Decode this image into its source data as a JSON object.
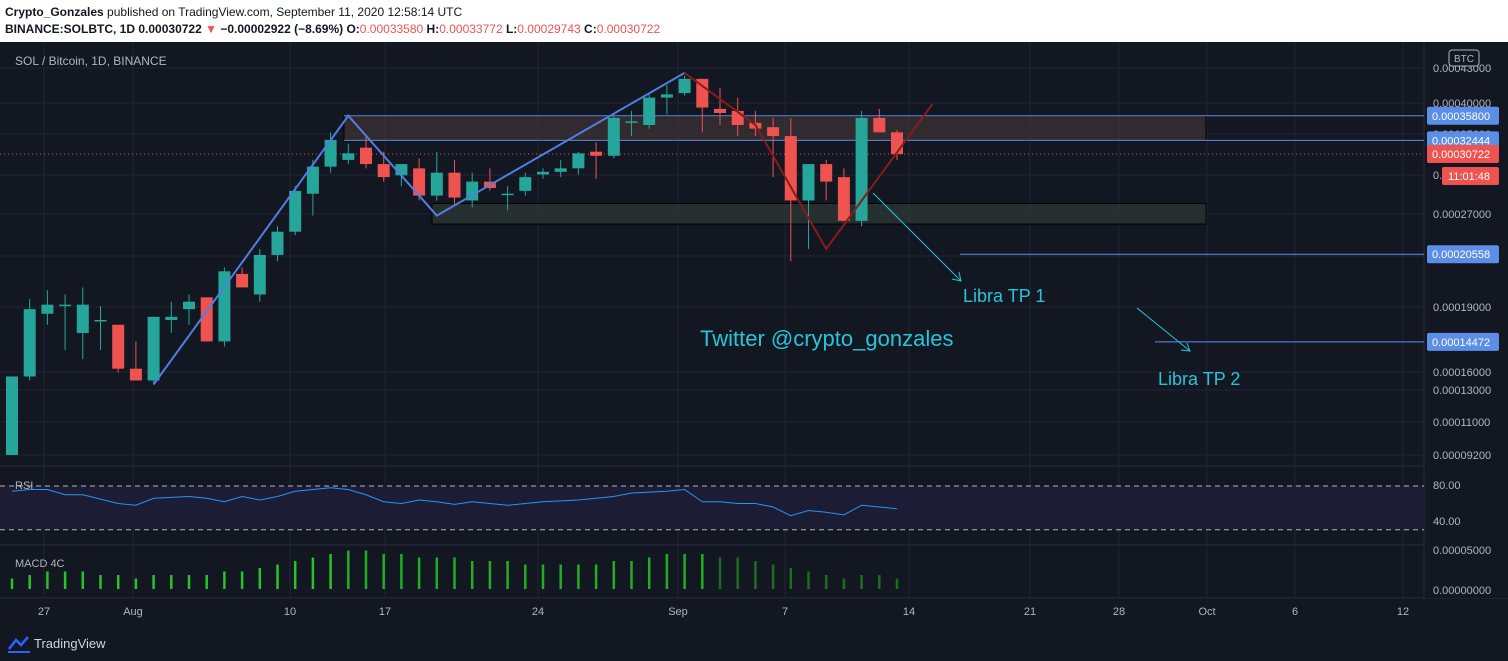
{
  "header": {
    "author": "Crypto_Gonzales",
    "published": "published on TradingView.com, September 11, 2020 12:58:14 UTC",
    "symbol": "BINANCE:SOLBTC, 1D",
    "last": "0.00030722",
    "change": "−0.00002922 (−8.69%)",
    "o_label": "O:",
    "o": "0.00033580",
    "h_label": "H:",
    "h": "0.00033772",
    "l_label": "L:",
    "l": "0.00029743",
    "c_label": "C:",
    "c": "0.00030722"
  },
  "chart_data": {
    "type": "candlestick",
    "title": "SOL / Bitcoin, 1D, BINANCE",
    "currency": "BTC",
    "y_ticks": [
      "0.00043000",
      "0.00040000",
      "0.00035000",
      "0.00031000",
      "0.00027000",
      "0.00023000",
      "0.00019000",
      "0.00016000",
      "0.00013000",
      "0.00011000",
      "0.00009200"
    ],
    "x_ticks": [
      "27",
      "Aug",
      "10",
      "17",
      "24",
      "Sep",
      "7",
      "14",
      "21",
      "28",
      "Oct",
      "6",
      "12"
    ],
    "candles": [
      {
        "o": 9.2e-05,
        "h": 0.000126,
        "l": 9.2e-05,
        "c": 0.000126
      },
      {
        "o": 0.000126,
        "h": 0.000172,
        "l": 0.000124,
        "c": 0.000165
      },
      {
        "o": 0.000162,
        "h": 0.000178,
        "l": 0.000155,
        "c": 0.000168
      },
      {
        "o": 0.000168,
        "h": 0.000175,
        "l": 0.00014,
        "c": 0.000168
      },
      {
        "o": 0.00015,
        "h": 0.00018,
        "l": 0.000135,
        "c": 0.000168
      },
      {
        "o": 0.000158,
        "h": 0.000167,
        "l": 0.00014,
        "c": 0.000158
      },
      {
        "o": 0.000155,
        "h": 0.000155,
        "l": 0.000128,
        "c": 0.00013
      },
      {
        "o": 0.00013,
        "h": 0.000145,
        "l": 0.000124,
        "c": 0.000124
      },
      {
        "o": 0.000124,
        "h": 0.00016,
        "l": 0.000122,
        "c": 0.00016
      },
      {
        "o": 0.000158,
        "h": 0.00017,
        "l": 0.00015,
        "c": 0.00016
      },
      {
        "o": 0.000165,
        "h": 0.000175,
        "l": 0.000155,
        "c": 0.00017
      },
      {
        "o": 0.000173,
        "h": 0.000173,
        "l": 0.000145,
        "c": 0.000145
      },
      {
        "o": 0.000145,
        "h": 0.000195,
        "l": 0.000142,
        "c": 0.000192
      },
      {
        "o": 0.00019,
        "h": 0.000195,
        "l": 0.00018,
        "c": 0.00018
      },
      {
        "o": 0.000175,
        "h": 0.00021,
        "l": 0.00017,
        "c": 0.000205
      },
      {
        "o": 0.000205,
        "h": 0.00023,
        "l": 0.0002,
        "c": 0.000225
      },
      {
        "o": 0.000225,
        "h": 0.00027,
        "l": 0.000222,
        "c": 0.000265
      },
      {
        "o": 0.000262,
        "h": 0.0003,
        "l": 0.00024,
        "c": 0.000292
      },
      {
        "o": 0.000292,
        "h": 0.000335,
        "l": 0.000285,
        "c": 0.000325
      },
      {
        "o": 0.0003,
        "h": 0.00032,
        "l": 0.000295,
        "c": 0.000308
      },
      {
        "o": 0.000315,
        "h": 0.00033,
        "l": 0.00029,
        "c": 0.000295
      },
      {
        "o": 0.000295,
        "h": 0.00031,
        "l": 0.000275,
        "c": 0.00028
      },
      {
        "o": 0.000282,
        "h": 0.000295,
        "l": 0.00027,
        "c": 0.000295
      },
      {
        "o": 0.00029,
        "h": 0.000302,
        "l": 0.000255,
        "c": 0.00026
      },
      {
        "o": 0.00026,
        "h": 0.00031,
        "l": 0.000255,
        "c": 0.000285
      },
      {
        "o": 0.000285,
        "h": 0.0003,
        "l": 0.00025,
        "c": 0.000258
      },
      {
        "o": 0.000255,
        "h": 0.000285,
        "l": 0.000248,
        "c": 0.000275
      },
      {
        "o": 0.000275,
        "h": 0.00029,
        "l": 0.000265,
        "c": 0.000268
      },
      {
        "o": 0.000262,
        "h": 0.00027,
        "l": 0.000245,
        "c": 0.000262
      },
      {
        "o": 0.000265,
        "h": 0.000285,
        "l": 0.00026,
        "c": 0.00028
      },
      {
        "o": 0.000283,
        "h": 0.00029,
        "l": 0.000278,
        "c": 0.000286
      },
      {
        "o": 0.000286,
        "h": 0.0003,
        "l": 0.00028,
        "c": 0.00029
      },
      {
        "o": 0.00029,
        "h": 0.00031,
        "l": 0.000283,
        "c": 0.000308
      },
      {
        "o": 0.00031,
        "h": 0.000322,
        "l": 0.000278,
        "c": 0.000305
      },
      {
        "o": 0.000305,
        "h": 0.00036,
        "l": 0.000302,
        "c": 0.000355
      },
      {
        "o": 0.00035,
        "h": 0.000365,
        "l": 0.00033,
        "c": 0.00035
      },
      {
        "o": 0.000345,
        "h": 0.00039,
        "l": 0.00034,
        "c": 0.000385
      },
      {
        "o": 0.000385,
        "h": 0.000405,
        "l": 0.00036,
        "c": 0.00039
      },
      {
        "o": 0.000392,
        "h": 0.00042,
        "l": 0.000388,
        "c": 0.000415
      },
      {
        "o": 0.000415,
        "h": 0.000415,
        "l": 0.000335,
        "c": 0.00037
      },
      {
        "o": 0.000368,
        "h": 0.0004,
        "l": 0.000345,
        "c": 0.000362
      },
      {
        "o": 0.000365,
        "h": 0.000385,
        "l": 0.00033,
        "c": 0.000345
      },
      {
        "o": 0.000348,
        "h": 0.000365,
        "l": 0.00033,
        "c": 0.00034
      },
      {
        "o": 0.000342,
        "h": 0.000355,
        "l": 0.00028,
        "c": 0.00033
      },
      {
        "o": 0.00033,
        "h": 0.000355,
        "l": 0.0002,
        "c": 0.000255
      },
      {
        "o": 0.000255,
        "h": 0.000295,
        "l": 0.00021,
        "c": 0.000295
      },
      {
        "o": 0.000295,
        "h": 0.0003,
        "l": 0.000255,
        "c": 0.000275
      },
      {
        "o": 0.00028,
        "h": 0.00029,
        "l": 0.000235,
        "c": 0.000235
      },
      {
        "o": 0.000235,
        "h": 0.000365,
        "l": 0.00023,
        "c": 0.000355
      },
      {
        "o": 0.000355,
        "h": 0.000368,
        "l": 0.000335,
        "c": 0.000335
      },
      {
        "o": 0.000335,
        "h": 0.000338,
        "l": 0.0003,
        "c": 0.000307
      }
    ],
    "zones": [
      {
        "top": 0.000358,
        "bottom": 0.000324
      },
      {
        "top": 0.000252,
        "bottom": 0.000232
      }
    ],
    "price_labels": [
      {
        "value": "0.00035800",
        "price": 0.000358,
        "color": "#5b8ee6"
      },
      {
        "value": "0.00032444",
        "price": 0.00032444,
        "color": "#5b8ee6"
      },
      {
        "value": "0.00030722",
        "price": 0.00030722,
        "color": "#ef5350"
      },
      {
        "value": "0.00020558",
        "price": 0.00020558,
        "color": "#5b8ee6"
      },
      {
        "value": "0.00014472",
        "price": 0.00014472,
        "color": "#5b8ee6"
      }
    ],
    "countdown": "11:01:48",
    "annotations": {
      "tp1": "Libra TP 1",
      "tp2": "Libra TP 2",
      "twitter": "Twitter  @crypto_gonzales"
    },
    "rsi": {
      "label": "RSI",
      "levels": [
        "80.00",
        "40.00"
      ],
      "values": [
        74,
        76,
        76,
        70,
        70,
        65,
        60,
        58,
        66,
        67,
        68,
        66,
        62,
        68,
        64,
        68,
        74,
        76,
        78,
        76,
        70,
        62,
        60,
        64,
        62,
        59,
        62,
        60,
        58,
        60,
        62,
        63,
        64,
        66,
        68,
        72,
        73,
        74,
        76,
        62,
        62,
        60,
        60,
        56,
        46,
        52,
        50,
        47,
        58,
        56,
        54
      ]
    },
    "macd": {
      "label": "MACD 4C",
      "values": [
        0.3,
        0.4,
        0.5,
        0.5,
        0.5,
        0.4,
        0.4,
        0.3,
        0.4,
        0.4,
        0.4,
        0.4,
        0.5,
        0.5,
        0.6,
        0.7,
        0.8,
        0.9,
        1.0,
        1.1,
        1.1,
        1.0,
        1.0,
        0.9,
        0.9,
        0.9,
        0.8,
        0.8,
        0.8,
        0.7,
        0.7,
        0.7,
        0.7,
        0.7,
        0.8,
        0.8,
        0.9,
        1.0,
        1.0,
        1.0,
        0.9,
        0.9,
        0.8,
        0.7,
        0.6,
        0.5,
        0.4,
        0.3,
        0.4,
        0.4,
        0.3
      ],
      "ticks": [
        "0.00005000",
        "0.00000000"
      ]
    }
  }
}
